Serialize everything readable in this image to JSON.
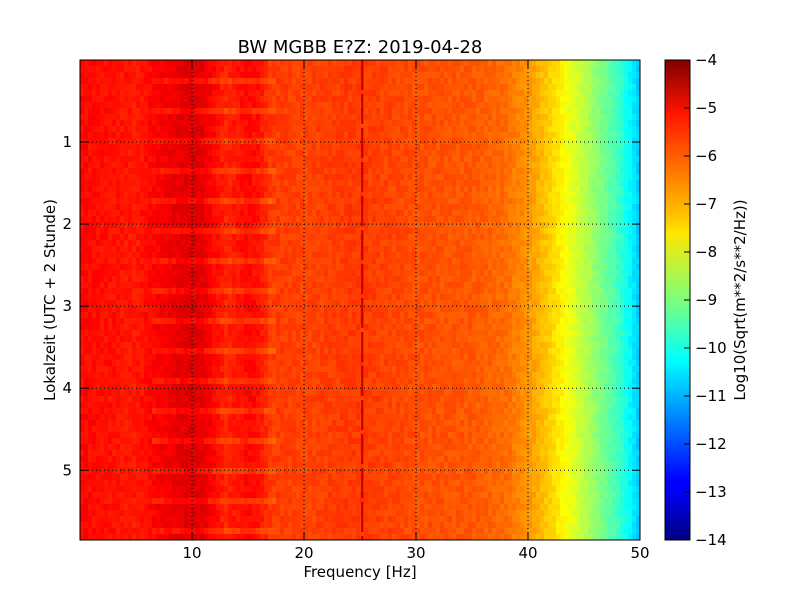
{
  "chart_data": {
    "type": "heatmap",
    "title": "BW MGBB E?Z: 2019-04-28",
    "xlabel": "Frequency [Hz]",
    "ylabel": "Lokalzeit (UTC + 2 Stunde)",
    "xlim": [
      0,
      50
    ],
    "ylim": [
      5.85,
      0
    ],
    "xticks": [
      10,
      20,
      30,
      40,
      50
    ],
    "yticks": [
      1,
      2,
      3,
      4,
      5
    ],
    "grid": true,
    "colorbar": {
      "label": "Log10(Sqrt(m**2/s**2/Hz))",
      "range": [
        -14,
        -4
      ],
      "ticks": [
        -4,
        -5,
        -6,
        -7,
        -8,
        -9,
        -10,
        -11,
        -12,
        -13,
        -14
      ],
      "colormap": "jet"
    },
    "spectrum_profile": {
      "frequency_hz": [
        0,
        5,
        7,
        9,
        10,
        11,
        12,
        13,
        15,
        16,
        17,
        20,
        25,
        30,
        35,
        38,
        40,
        42,
        44,
        46,
        48,
        49,
        50
      ],
      "log10_amplitude": [
        -5.3,
        -5.5,
        -5.2,
        -5.0,
        -4.9,
        -5.0,
        -5.3,
        -5.6,
        -5.3,
        -5.4,
        -5.8,
        -5.9,
        -5.8,
        -6.0,
        -6.1,
        -6.3,
        -6.7,
        -7.3,
        -8.0,
        -8.8,
        -9.6,
        -10.2,
        -10.8
      ]
    },
    "spectral_line_hz": 25.2
  }
}
